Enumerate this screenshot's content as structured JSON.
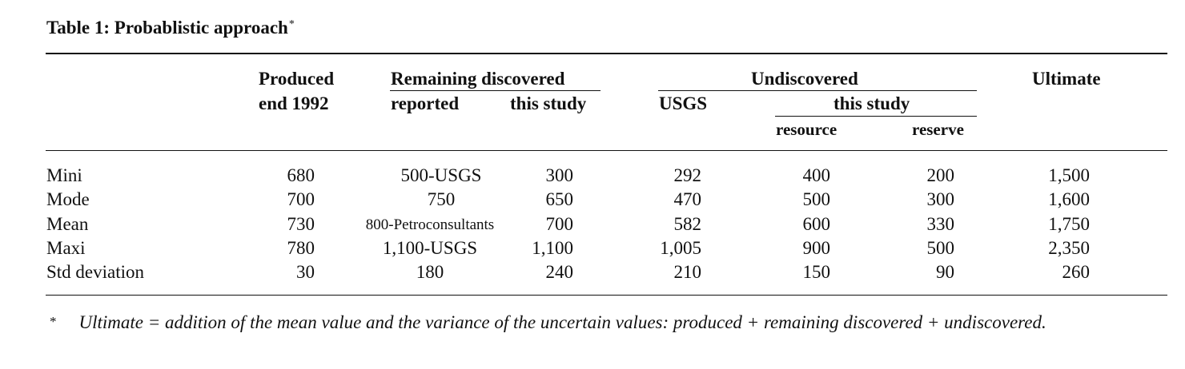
{
  "title": "Table 1: Probablistic approach",
  "title_marker": "*",
  "headers": {
    "produced_line1": "Produced",
    "produced_line2": "end 1992",
    "remaining": "Remaining discovered",
    "remaining_reported": "reported",
    "remaining_this_study": "this study",
    "undiscovered": "Undiscovered",
    "usgs": "USGS",
    "undiscovered_this_study": "this study",
    "resource": "resource",
    "reserve": "reserve",
    "ultimate": "Ultimate"
  },
  "rows": [
    {
      "label": "Mini",
      "produced": "680",
      "reported": "500-USGS",
      "rem_this_study": "300",
      "usgs": "292",
      "resource": "400",
      "reserve": "200",
      "ultimate": "1,500"
    },
    {
      "label": "Mode",
      "produced": "700",
      "reported": "750",
      "rem_this_study": "650",
      "usgs": "470",
      "resource": "500",
      "reserve": "300",
      "ultimate": "1,600"
    },
    {
      "label": "Mean",
      "produced": "730",
      "reported": "800-Petroconsultants",
      "rem_this_study": "700",
      "usgs": "582",
      "resource": "600",
      "reserve": "330",
      "ultimate": "1,750"
    },
    {
      "label": "Maxi",
      "produced": "780",
      "reported": "1,100-USGS",
      "rem_this_study": "1,100",
      "usgs": "1,005",
      "resource": "900",
      "reserve": "500",
      "ultimate": "2,350"
    },
    {
      "label": "Std deviation",
      "produced": "30",
      "reported": "180",
      "rem_this_study": "240",
      "usgs": "210",
      "resource": "150",
      "reserve": "90",
      "ultimate": "260"
    }
  ],
  "footnote": {
    "marker": "*",
    "text": "Ultimate = addition of the mean value and the variance of the uncertain values: produced + remaining discovered + undiscovered."
  }
}
